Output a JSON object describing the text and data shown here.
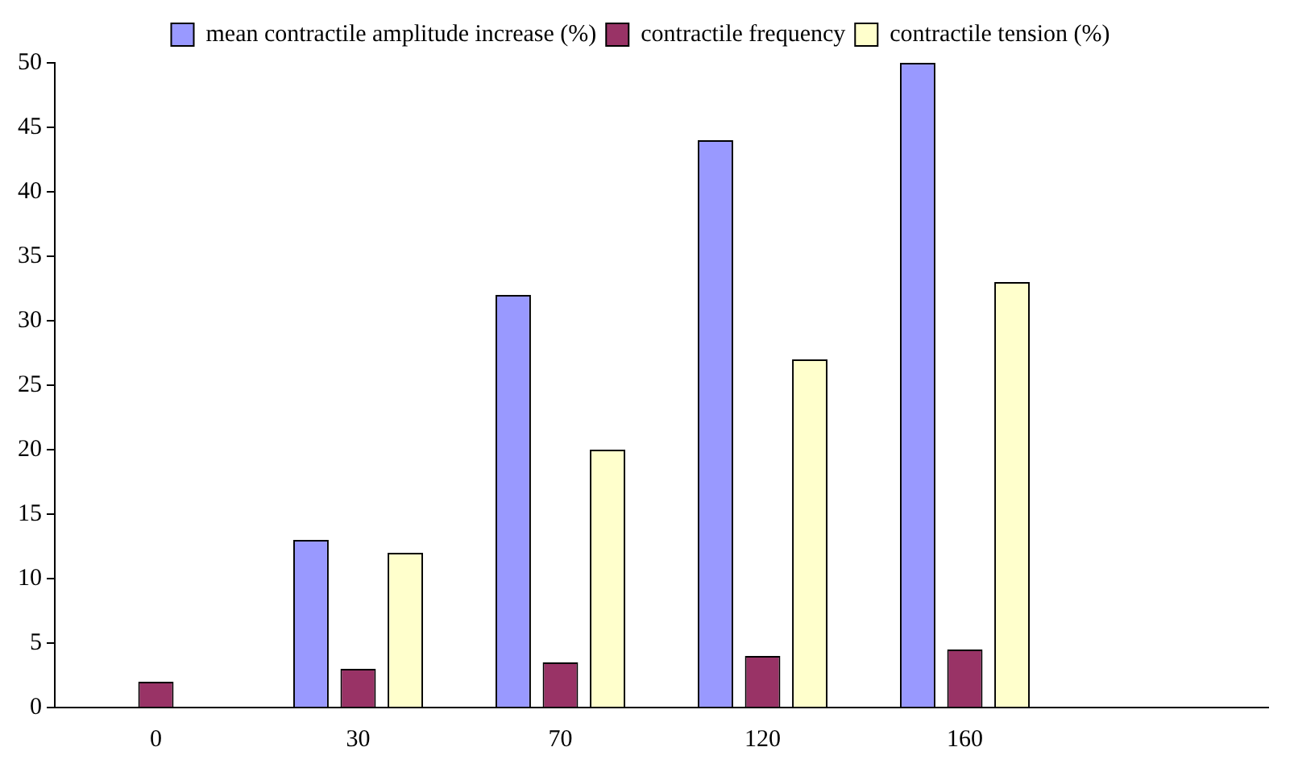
{
  "chart_data": {
    "type": "bar",
    "categories": [
      "0",
      "30",
      "70",
      "120",
      "160",
      null
    ],
    "series": [
      {
        "name": "mean contractile amplitude increase (%)",
        "color": "#9999ff",
        "values": [
          0,
          13,
          32,
          44,
          50,
          null
        ]
      },
      {
        "name": "contractile frequency",
        "color": "#993366",
        "values": [
          2,
          3,
          3.5,
          4,
          4.5,
          null
        ]
      },
      {
        "name": "contractile tension (%)",
        "color": "#ffffcc",
        "values": [
          0,
          12,
          20,
          27,
          33,
          null
        ]
      }
    ],
    "ylim": [
      0,
      50
    ],
    "yticks": [
      0,
      5,
      10,
      15,
      20,
      25,
      30,
      35,
      40,
      45,
      50
    ],
    "grid": false,
    "legend": "top"
  }
}
